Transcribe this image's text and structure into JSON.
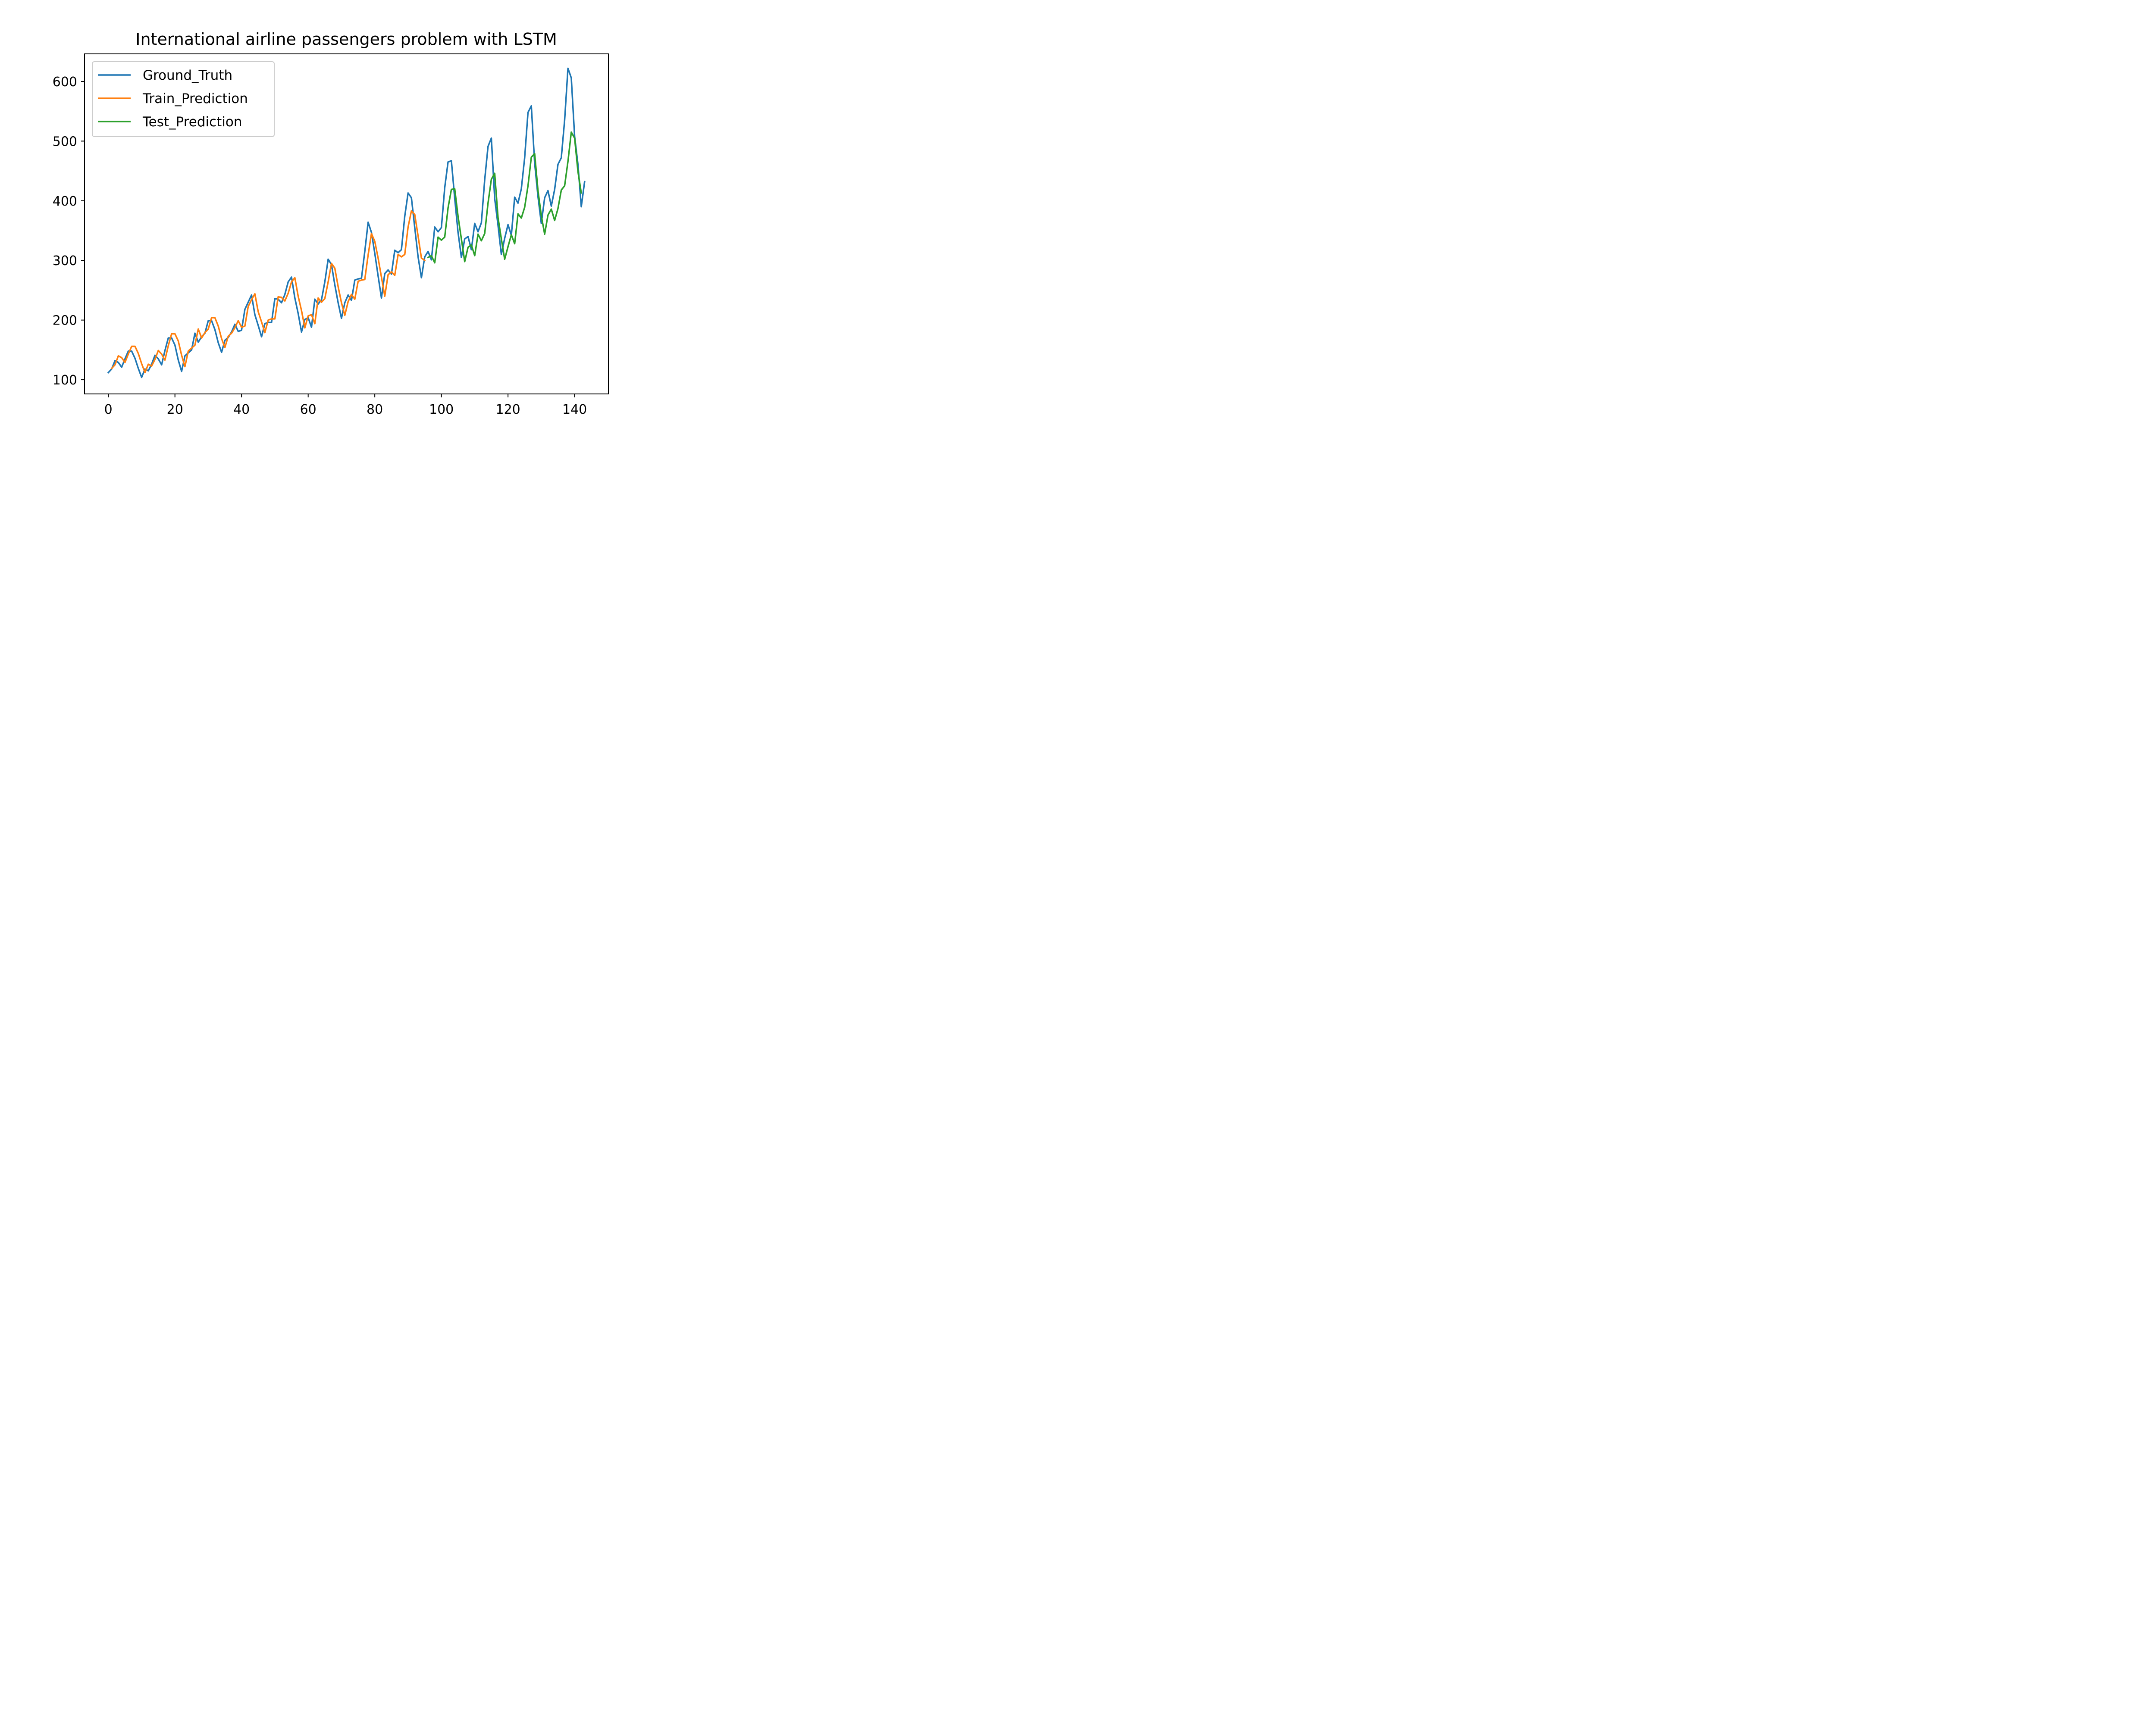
{
  "chart_data": {
    "type": "line",
    "title": "International airline passengers problem with LSTM",
    "xlabel": "",
    "ylabel": "",
    "xlim": [
      -7.15,
      150.15
    ],
    "ylim": [
      76.2,
      646.2
    ],
    "x_ticks": [
      0,
      20,
      40,
      60,
      80,
      100,
      120,
      140
    ],
    "y_ticks": [
      100,
      200,
      300,
      400,
      500,
      600
    ],
    "grid": false,
    "legend_position": "upper-left",
    "series": [
      {
        "name": "Ground_Truth",
        "color": "#1f77b4",
        "x_start": 0,
        "values": [
          112,
          118,
          132,
          129,
          121,
          135,
          148,
          148,
          136,
          119,
          104,
          118,
          115,
          126,
          141,
          135,
          125,
          149,
          170,
          170,
          158,
          133,
          114,
          140,
          145,
          150,
          178,
          163,
          172,
          178,
          199,
          199,
          184,
          162,
          146,
          166,
          171,
          180,
          193,
          181,
          183,
          218,
          230,
          242,
          209,
          191,
          172,
          194,
          196,
          196,
          236,
          235,
          229,
          243,
          264,
          272,
          237,
          211,
          180,
          201,
          204,
          188,
          235,
          227,
          234,
          264,
          302,
          293,
          259,
          229,
          203,
          229,
          242,
          233,
          267,
          269,
          270,
          315,
          364,
          347,
          312,
          274,
          237,
          278,
          284,
          277,
          317,
          313,
          318,
          374,
          413,
          405,
          355,
          306,
          271,
          306,
          315,
          301,
          356,
          348,
          355,
          422,
          465,
          467,
          404,
          347,
          305,
          336,
          340,
          318,
          362,
          348,
          363,
          435,
          491,
          505,
          404,
          359,
          310,
          337,
          360,
          342,
          406,
          396,
          420,
          472,
          548,
          559,
          463,
          407,
          362,
          405,
          417,
          391,
          419,
          461,
          472,
          535,
          622,
          606,
          508,
          461,
          390,
          432
        ]
      },
      {
        "name": "Train_Prediction",
        "color": "#ff7f0e",
        "x_start": 1,
        "values": [
          119,
          125,
          140,
          137,
          129,
          143,
          156,
          156,
          144,
          127,
          112,
          126,
          123,
          134,
          149,
          143,
          133,
          157,
          177,
          177,
          165,
          141,
          122,
          148,
          153,
          158,
          185,
          170,
          179,
          185,
          204,
          204,
          190,
          169,
          154,
          173,
          178,
          187,
          199,
          188,
          190,
          223,
          234,
          244,
          214,
          197,
          179,
          200,
          202,
          202,
          239,
          238,
          232,
          245,
          264,
          271,
          240,
          216,
          187,
          207,
          209,
          194,
          237,
          230,
          236,
          264,
          295,
          287,
          256,
          229,
          208,
          231,
          243,
          235,
          265,
          267,
          268,
          309,
          345,
          332,
          304,
          272,
          240,
          276,
          281,
          275,
          310,
          306,
          310,
          356,
          383,
          377,
          341,
          304,
          300
        ]
      },
      {
        "name": "Test_Prediction",
        "color": "#2ca02c",
        "x_start": 96,
        "values": [
          305,
          308,
          296,
          339,
          334,
          339,
          388,
          419,
          420,
          374,
          336,
          298,
          322,
          326,
          308,
          344,
          333,
          345,
          396,
          436,
          446,
          372,
          336,
          302,
          323,
          343,
          328,
          378,
          371,
          389,
          425,
          473,
          479,
          417,
          375,
          344,
          376,
          386,
          367,
          387,
          418,
          425,
          466,
          515,
          505,
          449,
          413
        ]
      }
    ]
  }
}
